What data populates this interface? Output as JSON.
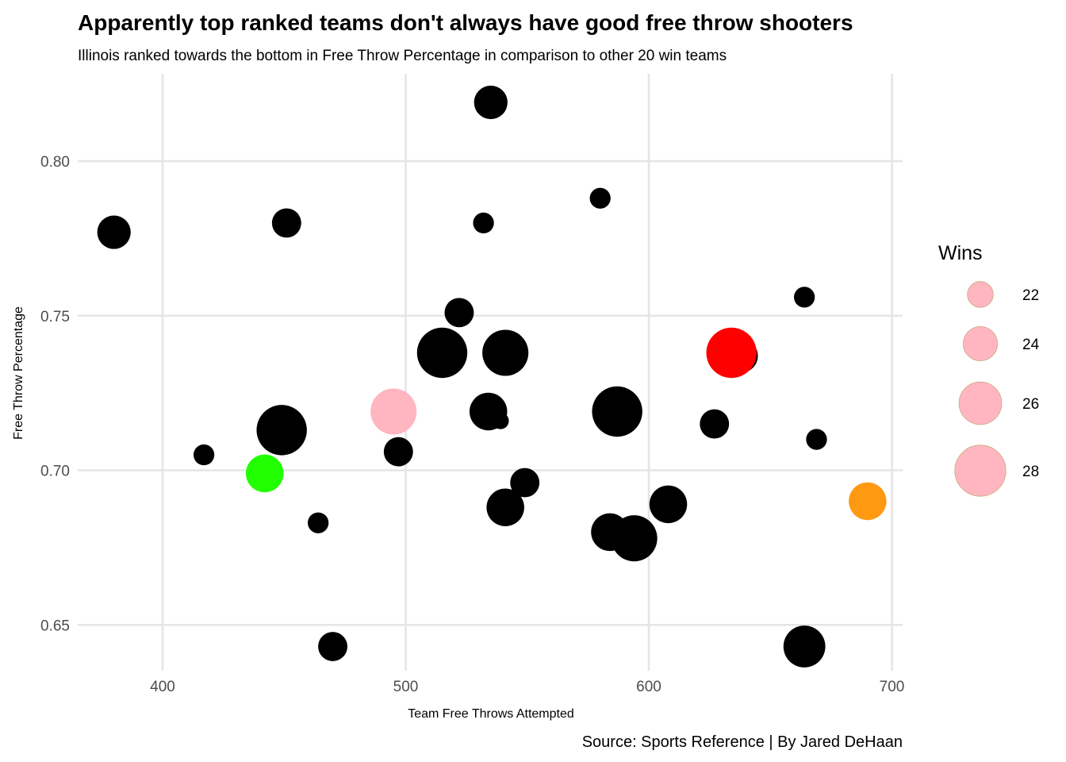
{
  "chart_data": {
    "type": "scatter",
    "title": "Apparently top ranked teams don't always have good free throw shooters",
    "subtitle": "Illinois ranked towards the bottom in Free Throw Percentage in comparison to other 20 win teams",
    "caption": "Source: Sports Reference | By Jared DeHaan",
    "xlabel": "Team Free Throws Attempted",
    "ylabel": "Free Throw Percentage",
    "xlim": [
      365,
      705
    ],
    "ylim": [
      0.636,
      0.828
    ],
    "x_ticks": [
      400,
      500,
      600,
      700
    ],
    "x_tick_labels": [
      "400",
      "500",
      "600",
      "700"
    ],
    "y_ticks": [
      0.65,
      0.7,
      0.75,
      0.8
    ],
    "y_tick_labels": [
      "0.65",
      "0.70",
      "0.75",
      "0.80"
    ],
    "grid": true,
    "size_variable": "Wins",
    "legend": {
      "title": "Wins",
      "placement": "right",
      "entries": [
        {
          "wins": 22,
          "label": "22"
        },
        {
          "wins": 24,
          "label": "24"
        },
        {
          "wins": 26,
          "label": "26"
        },
        {
          "wins": 28,
          "label": "28"
        }
      ],
      "fill": "#FFB6C1"
    },
    "points": [
      {
        "x": 535,
        "y": 0.819,
        "wins": 24,
        "color": "#000000"
      },
      {
        "x": 580,
        "y": 0.788,
        "wins": 21,
        "color": "#000000"
      },
      {
        "x": 380,
        "y": 0.777,
        "wins": 24,
        "color": "#000000"
      },
      {
        "x": 451,
        "y": 0.78,
        "wins": 23,
        "color": "#000000"
      },
      {
        "x": 532,
        "y": 0.78,
        "wins": 21,
        "color": "#000000"
      },
      {
        "x": 664,
        "y": 0.756,
        "wins": 21,
        "color": "#000000"
      },
      {
        "x": 522,
        "y": 0.751,
        "wins": 23,
        "color": "#000000"
      },
      {
        "x": 515,
        "y": 0.738,
        "wins": 28,
        "color": "#000000"
      },
      {
        "x": 541,
        "y": 0.738,
        "wins": 27,
        "color": "#000000"
      },
      {
        "x": 638,
        "y": 0.737,
        "wins": 24,
        "color": "#000000"
      },
      {
        "x": 634,
        "y": 0.738,
        "wins": 28,
        "color": "#FF0000"
      },
      {
        "x": 495,
        "y": 0.719,
        "wins": 27,
        "color": "#FFB6C1"
      },
      {
        "x": 534,
        "y": 0.719,
        "wins": 25,
        "color": "#000000"
      },
      {
        "x": 539,
        "y": 0.716,
        "wins": 20,
        "color": "#000000"
      },
      {
        "x": 587,
        "y": 0.719,
        "wins": 28,
        "color": "#000000"
      },
      {
        "x": 627,
        "y": 0.715,
        "wins": 23,
        "color": "#000000"
      },
      {
        "x": 449,
        "y": 0.713,
        "wins": 28,
        "color": "#000000"
      },
      {
        "x": 669,
        "y": 0.71,
        "wins": 21,
        "color": "#000000"
      },
      {
        "x": 417,
        "y": 0.705,
        "wins": 21,
        "color": "#000000"
      },
      {
        "x": 497,
        "y": 0.706,
        "wins": 23,
        "color": "#000000"
      },
      {
        "x": 442,
        "y": 0.699,
        "wins": 25,
        "color": "#22FF00"
      },
      {
        "x": 549,
        "y": 0.696,
        "wins": 23,
        "color": "#000000"
      },
      {
        "x": 690,
        "y": 0.69,
        "wins": 25,
        "color": "#FF9912"
      },
      {
        "x": 541,
        "y": 0.688,
        "wins": 25,
        "color": "#000000"
      },
      {
        "x": 608,
        "y": 0.689,
        "wins": 25,
        "color": "#000000"
      },
      {
        "x": 464,
        "y": 0.683,
        "wins": 21,
        "color": "#000000"
      },
      {
        "x": 584,
        "y": 0.68,
        "wins": 25,
        "color": "#000000"
      },
      {
        "x": 594,
        "y": 0.678,
        "wins": 27,
        "color": "#000000"
      },
      {
        "x": 470,
        "y": 0.643,
        "wins": 23,
        "color": "#000000"
      },
      {
        "x": 664,
        "y": 0.643,
        "wins": 26,
        "color": "#000000"
      }
    ]
  }
}
